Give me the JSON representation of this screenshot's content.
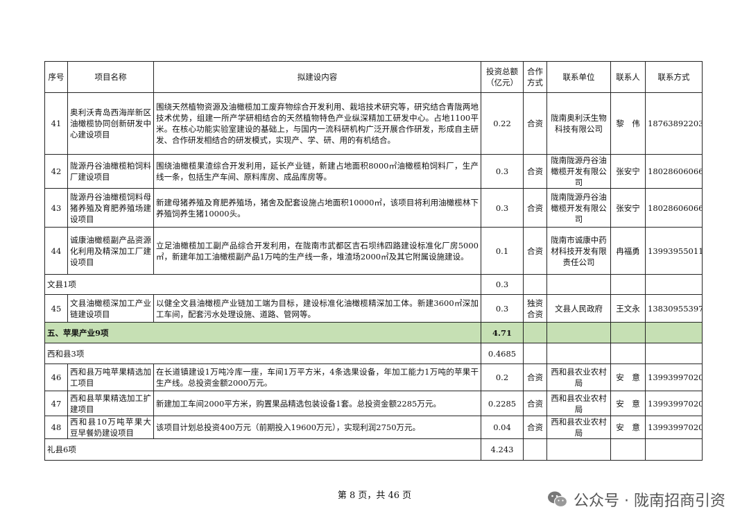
{
  "table": {
    "headers": [
      "序号",
      "项目名称",
      "拟建设内容",
      "投资总额（亿元）",
      "合作方式",
      "联系单位",
      "联系人",
      "联系方式"
    ],
    "rows": [
      {
        "type": "item",
        "no": "41",
        "name": "奥利沃青岛西海岸新区油橄榄协同创新研发中心建设项目",
        "content": "围绕天然植物资源及油橄榄加工废弃物综合开发利用、栽培技术研究等，研究结合青陇两地技术优势，组建一所产学研相结合的天然植物特色产业纵深精加工研发中心。占地1100平米。在核心功能实验室建设的基础上，与国内一流科研机构广泛开展合作研发，形成自主研发、合作研发相结合的研发模式，实现产、学、研、用的有机结合。",
        "amount": "0.22",
        "mode": "合资",
        "unit": "陇南奥利沃生物科技有限公司",
        "person": "黎　伟",
        "phone": "18763892203"
      },
      {
        "type": "item",
        "no": "42",
        "name": "陇源丹谷油橄榄粕饲料厂建设项目",
        "content": "围绕油橄榄果渣综合开发利用，延长产业链，新建占地面积8000㎡油橄榄粕饲料厂，生产线一条，包括生产车间、原料库房、成品库房等。",
        "amount": "0.3",
        "mode": "合资",
        "unit": "陇南陇源丹谷油橄榄开发有限公司",
        "person": "张安宁",
        "phone": "18028606066"
      },
      {
        "type": "item",
        "no": "43",
        "name": "陇源丹谷油橄榄饲料母猪养殖及育肥养殖场建设项目",
        "content": "新建母猪养殖及育肥养殖场，猪舍及配套设施占地面积10000㎡，该项目将利用油橄榄林下养殖饲养生猪10000头。",
        "amount": "0.3",
        "mode": "合资",
        "unit": "陇南陇源丹谷油橄榄开发有限公司",
        "person": "张安宁",
        "phone": "18028606066"
      },
      {
        "type": "item",
        "no": "44",
        "name": "诚康油橄榄副产品资源化利用及精深加工厂建设项目",
        "content": "立足油橄榄加工副产品综合开发利用，在陇南市武都区吉石坝纬四路建设标准化厂房5000㎡，新建年加工油橄榄副产品1万吨的生产线一条，堆渣场2000㎡及其它附属设施建设。",
        "amount": "0.1",
        "mode": "合资",
        "unit": "陇南市诚康中药材科技开发有限责任公司",
        "person": "冉福勇",
        "phone": "13993955011"
      },
      {
        "type": "group",
        "label": "文县1项",
        "amount": "0.3"
      },
      {
        "type": "item",
        "no": "45",
        "name": "文县油橄榄深加工产业链建设项目",
        "content": "以健全文县油橄榄产业链加工端为目标，建设标准化油橄榄精深加工体。新建3600㎡深加工车间，配套污水处理设施、道路、管网等。",
        "amount": "0.3",
        "mode": "独资合资",
        "unit": "文县人民政府",
        "person": "王文永",
        "phone": "13830955397"
      },
      {
        "type": "section",
        "label": "五、苹果产业9项",
        "amount": "4.71"
      },
      {
        "type": "group",
        "label": "西和县3项",
        "amount": "0.4685"
      },
      {
        "type": "item",
        "no": "46",
        "name": "西和县万吨苹果精选加工项目",
        "content": "在长道镇建设1万吨冷库一座，车间1万平方米，4条选果设备，年加工能力1万吨的苹果干生产线。总投资金额2000万元。",
        "amount": "0.2",
        "mode": "合资",
        "unit": "西和县农业农村局",
        "person": "安　意",
        "phone": "13993997020"
      },
      {
        "type": "item",
        "no": "47",
        "name": "西和县苹果精选加工扩建项目",
        "content": "新建加工车间2000平方米，购置果品精选包装设备1套。总投资金额2285万元。",
        "amount": "0.2285",
        "mode": "合资",
        "unit": "西和县农业农村局",
        "person": "安　意",
        "phone": "13993997020"
      },
      {
        "type": "item",
        "no": "48",
        "name": "西和县10万吨苹果大豆早餐奶建设项目",
        "content": "该项目计划总投资400万元（前期投入19600万元），实现利润2750万元。",
        "amount": "0.04",
        "mode": "合资",
        "unit": "西和县农业农村局",
        "person": "安　意",
        "phone": "13993997020"
      },
      {
        "type": "group",
        "label": "礼县6项",
        "amount": "4.243"
      }
    ]
  },
  "footer": {
    "page_text": "第 8 页，共 46 页"
  },
  "watermark": {
    "text": "公众号 · 陇南招商引资",
    "icon": "wechat-icon"
  },
  "colors": {
    "section_bg": "#c6e0b4"
  }
}
